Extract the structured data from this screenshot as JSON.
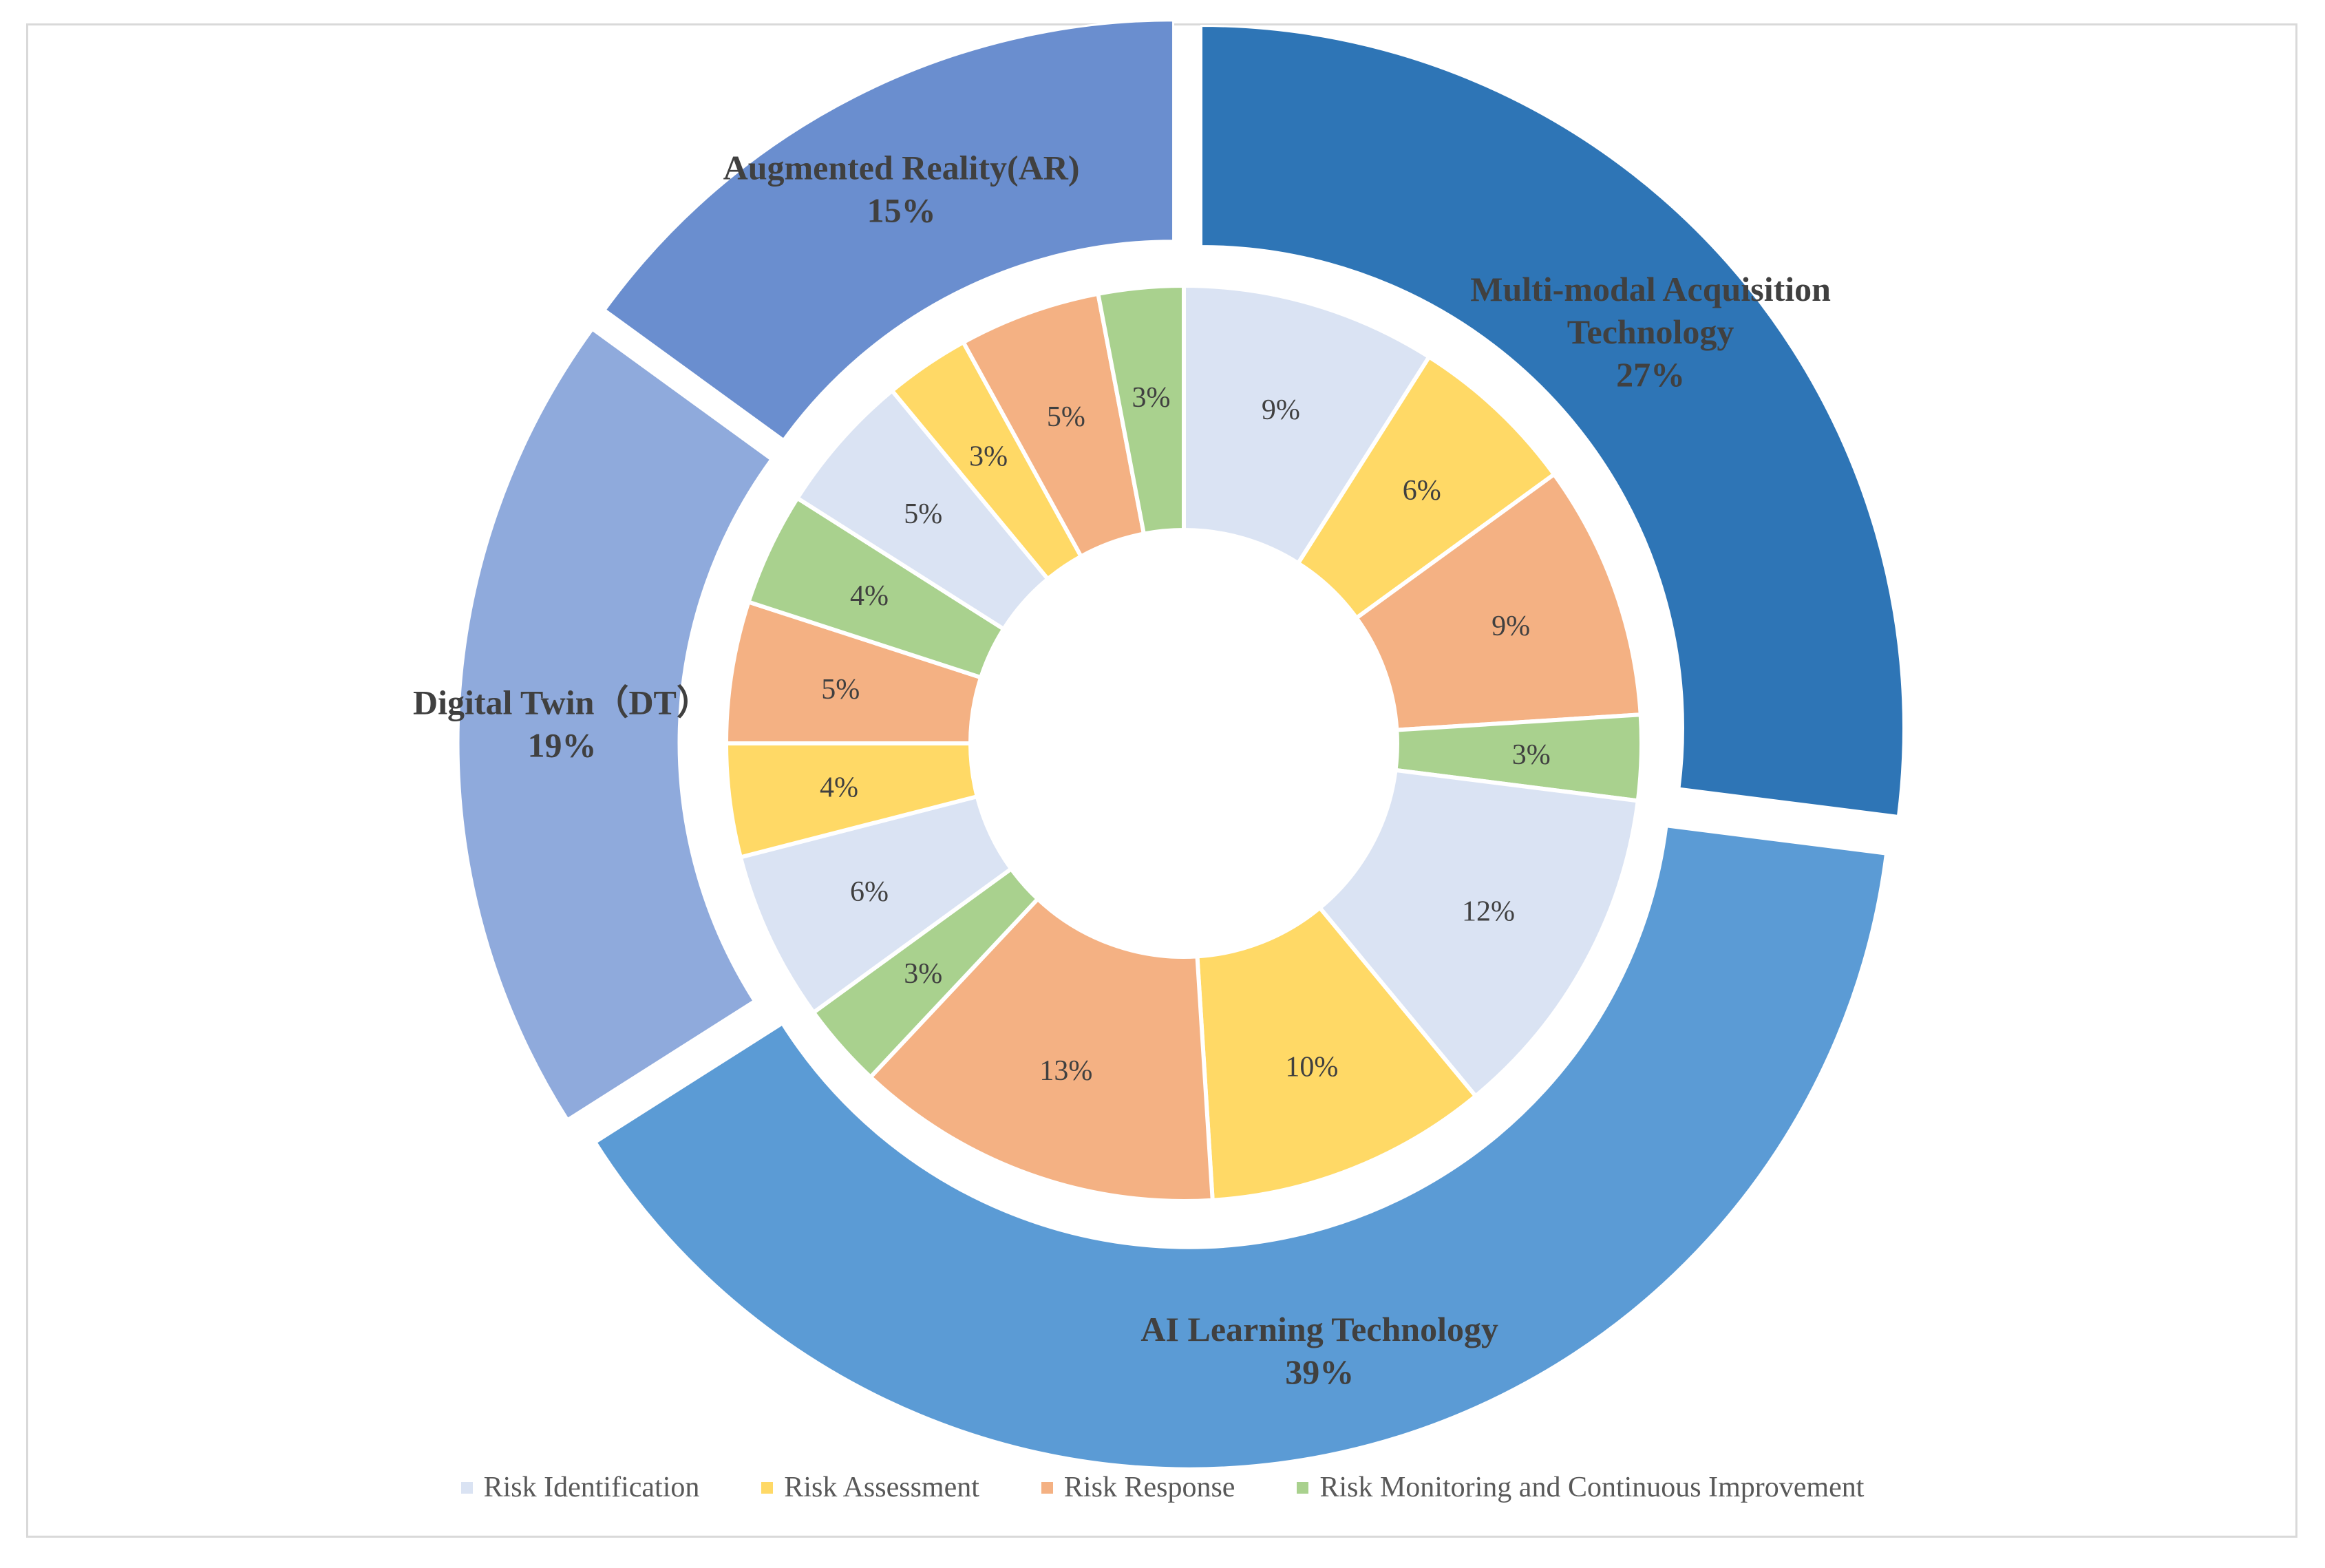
{
  "chart_data": {
    "type": "pie",
    "subtype": "nested-donut",
    "outer_ring": {
      "categories": [
        "Multi-modal Acquisition Technology",
        "AI Learning Technology",
        "Digital Twin（DT）",
        "Augmented Reality(AR)"
      ],
      "values": [
        27,
        39,
        19,
        15
      ],
      "labels": [
        "27%",
        "39%",
        "19%",
        "15%"
      ],
      "colors": [
        "#2e75b6",
        "#5b9bd5",
        "#8faadc",
        "#6a8ecf"
      ]
    },
    "inner_ring": {
      "slices": [
        {
          "group": "Multi-modal Acquisition Technology",
          "stage": "Risk Identification",
          "value": 9,
          "label": "9%"
        },
        {
          "group": "Multi-modal Acquisition Technology",
          "stage": "Risk Assessment",
          "value": 6,
          "label": "6%"
        },
        {
          "group": "Multi-modal Acquisition Technology",
          "stage": "Risk Response",
          "value": 9,
          "label": "9%"
        },
        {
          "group": "Multi-modal Acquisition Technology",
          "stage": "Risk Monitoring and Continuous Improvement",
          "value": 3,
          "label": "3%"
        },
        {
          "group": "AI Learning Technology",
          "stage": "Risk Identification",
          "value": 12,
          "label": "12%"
        },
        {
          "group": "AI Learning Technology",
          "stage": "Risk Assessment",
          "value": 10,
          "label": "10%"
        },
        {
          "group": "AI Learning Technology",
          "stage": "Risk Response",
          "value": 13,
          "label": "13%"
        },
        {
          "group": "AI Learning Technology",
          "stage": "Risk Monitoring and Continuous Improvement",
          "value": 3,
          "label": "3%"
        },
        {
          "group": "Digital Twin（DT）",
          "stage": "Risk Identification",
          "value": 6,
          "label": "6%"
        },
        {
          "group": "Digital Twin（DT）",
          "stage": "Risk Assessment",
          "value": 4,
          "label": "4%"
        },
        {
          "group": "Digital Twin（DT）",
          "stage": "Risk Response",
          "value": 5,
          "label": "5%"
        },
        {
          "group": "Digital Twin（DT）",
          "stage": "Risk Monitoring and Continuous Improvement",
          "value": 4,
          "label": "4%"
        },
        {
          "group": "Augmented Reality(AR)",
          "stage": "Risk Identification",
          "value": 5,
          "label": "5%"
        },
        {
          "group": "Augmented Reality(AR)",
          "stage": "Risk Assessment",
          "value": 3,
          "label": "3%"
        },
        {
          "group": "Augmented Reality(AR)",
          "stage": "Risk Response",
          "value": 5,
          "label": "5%"
        },
        {
          "group": "Augmented Reality(AR)",
          "stage": "Risk Monitoring and Continuous Improvement",
          "value": 3,
          "label": "3%"
        }
      ]
    },
    "legend": {
      "position": "bottom",
      "entries": [
        {
          "name": "Risk Identification",
          "color": "#dae3f3"
        },
        {
          "name": "Risk Assessment",
          "color": "#ffd966"
        },
        {
          "name": "Risk Response",
          "color": "#f4b183"
        },
        {
          "name": "Risk Monitoring and Continuous Improvement",
          "color": "#a9d18e"
        }
      ]
    },
    "title": "",
    "start_angle_deg": 0,
    "direction": "clockwise",
    "outer_ring_exploded": true
  }
}
